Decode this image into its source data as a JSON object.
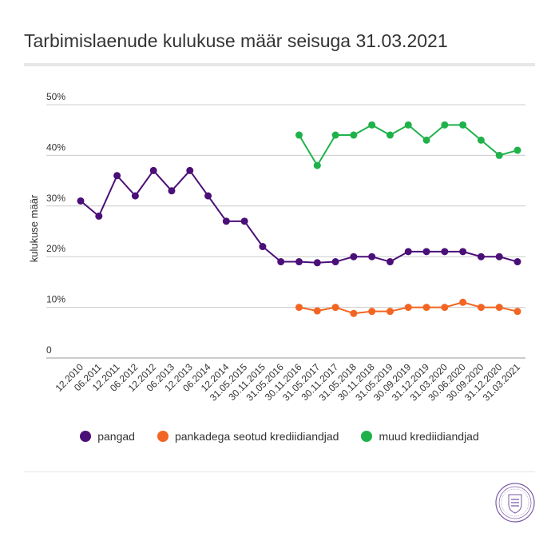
{
  "chart_data": {
    "type": "line",
    "title": "Tarbimislaenude kulukuse määr seisuga 31.03.2021",
    "xlabel": "",
    "ylabel": "kulukuse määr",
    "ylim": [
      0,
      50
    ],
    "y_ticks": [
      "0",
      "10%",
      "20%",
      "30%",
      "40%",
      "50%"
    ],
    "y_tick_values": [
      0,
      10,
      20,
      30,
      40,
      50
    ],
    "grid": true,
    "legend_position": "bottom",
    "categories": [
      "12.2010",
      "06.2011",
      "12.2011",
      "06.2012",
      "12.2012",
      "06.2013",
      "12.2013",
      "06.2014",
      "12.2014",
      "31.05.2015",
      "30.11.2015",
      "31.05.2016",
      "30.11.2016",
      "31.05.2017",
      "30.11.2017",
      "31.05.2018",
      "30.11.2018",
      "31.05.2019",
      "30.09.2019",
      "31.12.2019",
      "31.03.2020",
      "30.06.2020",
      "30.09.2020",
      "31.12.2020",
      "31.03.2021"
    ],
    "series": [
      {
        "name": "pangad",
        "color": "#4b0f78",
        "values": [
          31,
          28,
          36,
          32,
          37,
          33,
          37,
          32,
          27,
          27,
          22,
          19,
          19,
          18.8,
          19,
          20,
          20,
          19,
          21,
          21,
          21,
          21,
          20,
          20,
          19
        ]
      },
      {
        "name": "pankadega seotud krediidiandjad",
        "color": "#f26522",
        "values": [
          null,
          null,
          null,
          null,
          null,
          null,
          null,
          null,
          null,
          null,
          null,
          null,
          10,
          9.3,
          10,
          8.8,
          9.2,
          9.2,
          10,
          10,
          10,
          11,
          10,
          10,
          9.2
        ]
      },
      {
        "name": "muud krediidiandjad",
        "color": "#1fb24b",
        "values": [
          null,
          null,
          null,
          null,
          null,
          null,
          null,
          null,
          null,
          null,
          null,
          null,
          44,
          38,
          44,
          44,
          46,
          44,
          46,
          43,
          46,
          46,
          43,
          40,
          41
        ]
      }
    ]
  },
  "seal": {
    "name": "seal-logo"
  }
}
